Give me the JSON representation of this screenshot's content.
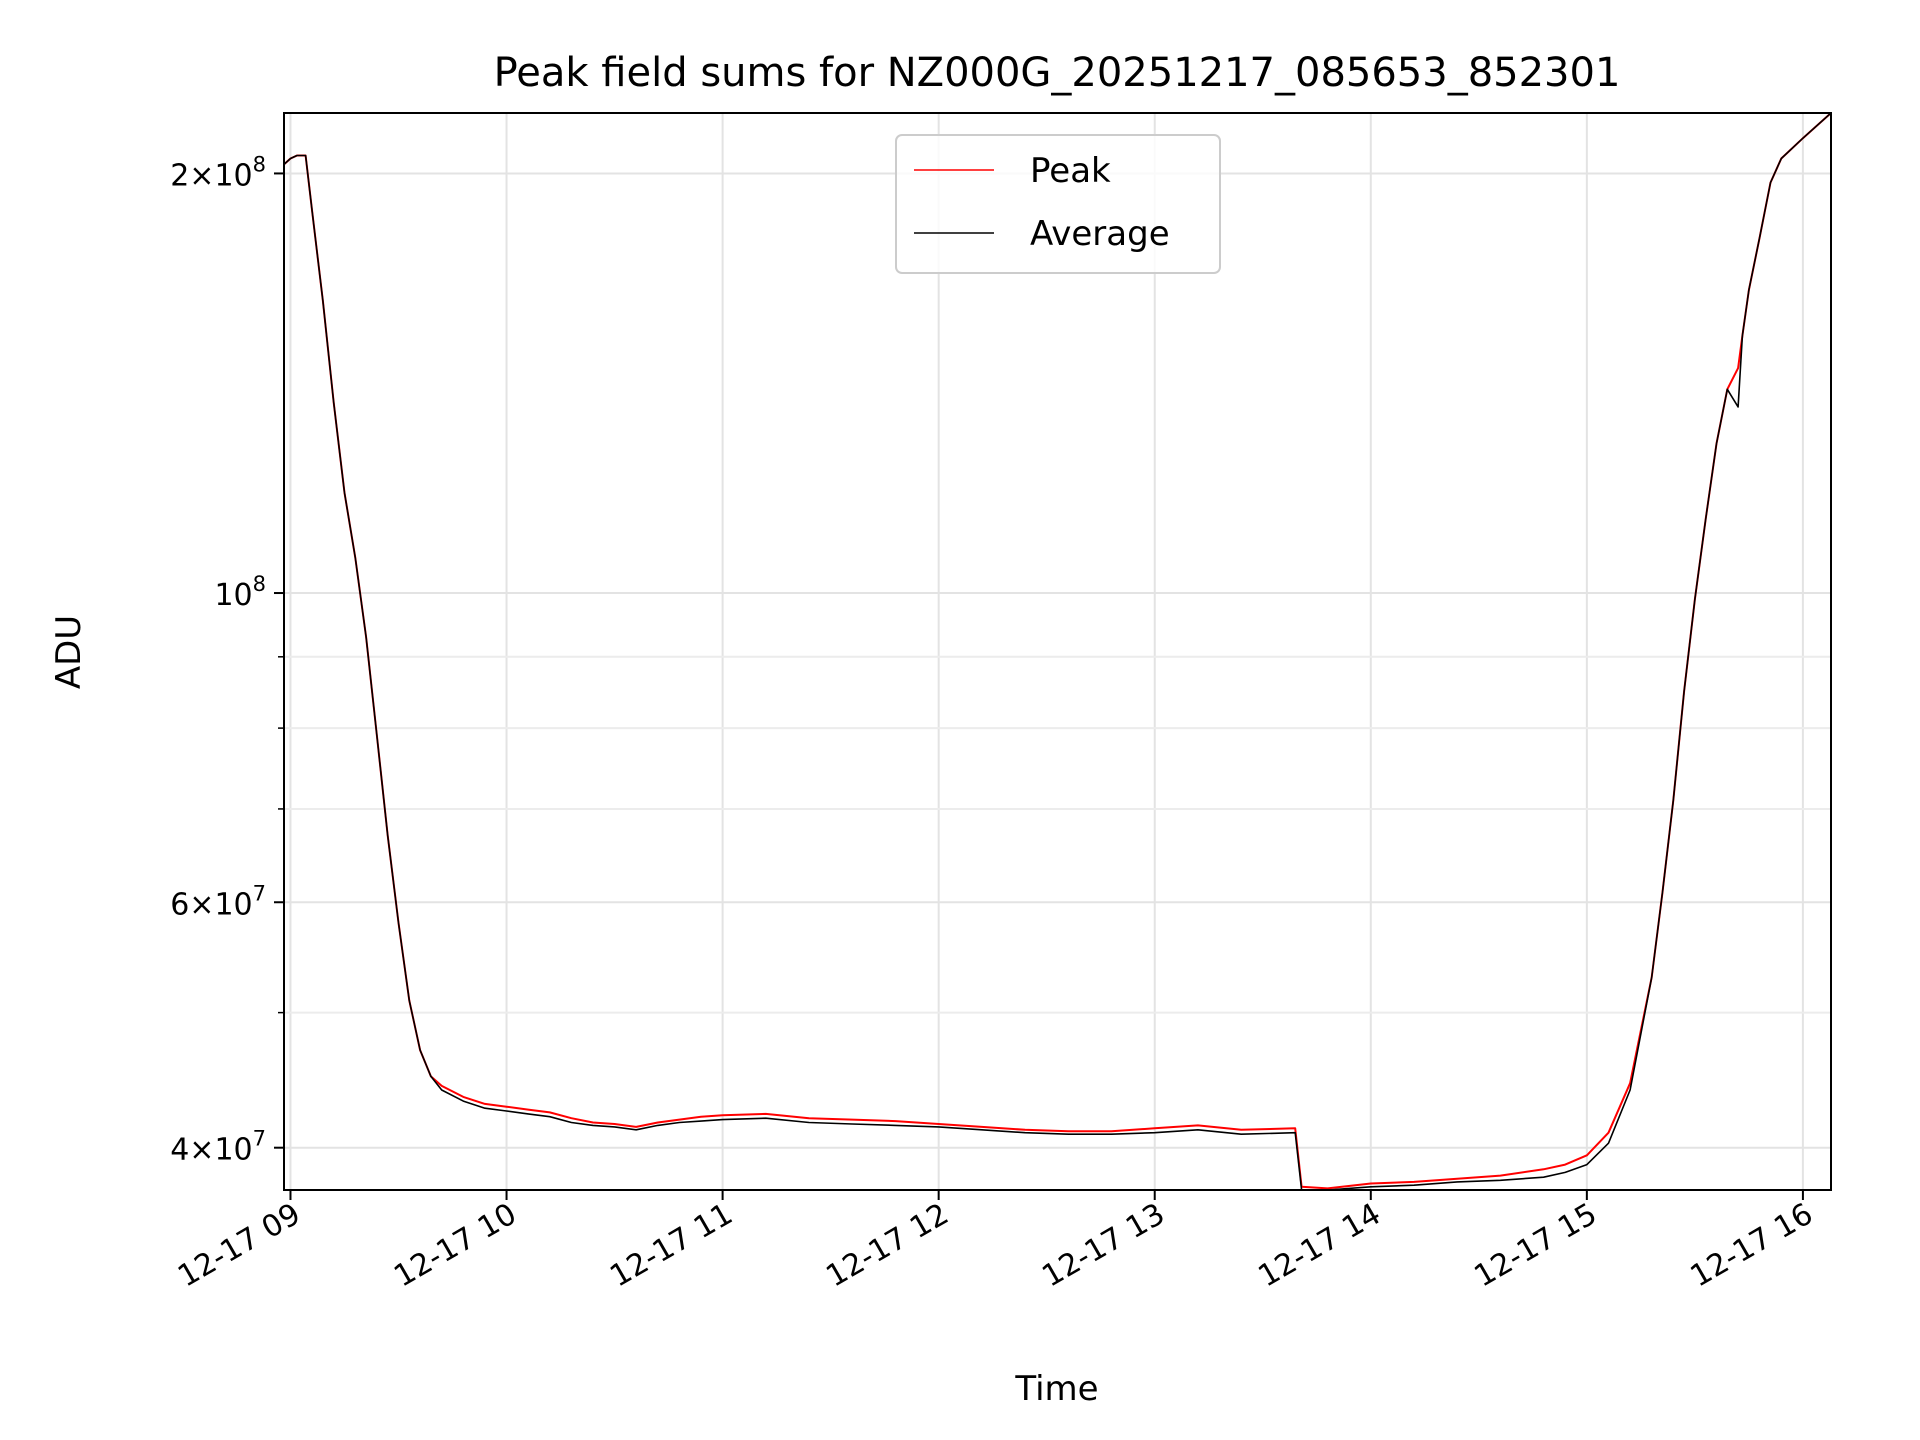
{
  "chart_data": {
    "type": "line",
    "title": "Peak field sums for NZ000G_20251217_085653_852301",
    "xlabel": "Time",
    "ylabel": "ADU",
    "yscale": "log",
    "xlim": [
      8.97,
      16.13
    ],
    "ylim": [
      37300000,
      221000000
    ],
    "grid": true,
    "legend_position": "top-center",
    "x_ticks": [
      {
        "value": 9,
        "label": "12-17 09"
      },
      {
        "value": 10,
        "label": "12-17 10"
      },
      {
        "value": 11,
        "label": "12-17 11"
      },
      {
        "value": 12,
        "label": "12-17 12"
      },
      {
        "value": 13,
        "label": "12-17 13"
      },
      {
        "value": 14,
        "label": "12-17 14"
      },
      {
        "value": 15,
        "label": "12-17 15"
      },
      {
        "value": 16,
        "label": "12-17 16"
      }
    ],
    "y_ticks": [
      {
        "value": 40000000,
        "mantissa": "4×10",
        "exp": "7"
      },
      {
        "value": 60000000,
        "mantissa": "6×10",
        "exp": "7"
      },
      {
        "value": 100000000,
        "mantissa": "10",
        "exp": "8"
      },
      {
        "value": 200000000,
        "mantissa": "2×10",
        "exp": "8"
      }
    ],
    "y_minor_ticks": [
      30000000,
      50000000,
      70000000,
      80000000,
      90000000
    ],
    "series": [
      {
        "name": "Peak",
        "color": "#ff0000",
        "x": [
          8.97,
          9.0,
          9.03,
          9.07,
          9.1,
          9.15,
          9.2,
          9.25,
          9.3,
          9.35,
          9.4,
          9.45,
          9.5,
          9.55,
          9.6,
          9.65,
          9.7,
          9.8,
          9.9,
          10.0,
          10.1,
          10.2,
          10.3,
          10.4,
          10.5,
          10.6,
          10.7,
          10.8,
          10.9,
          11.0,
          11.2,
          11.4,
          11.6,
          11.8,
          12.0,
          12.2,
          12.4,
          12.6,
          12.8,
          13.0,
          13.2,
          13.4,
          13.65,
          13.68,
          13.8,
          14.0,
          14.2,
          14.4,
          14.6,
          14.8,
          14.9,
          15.0,
          15.1,
          15.2,
          15.3,
          15.35,
          15.4,
          15.45,
          15.5,
          15.55,
          15.6,
          15.65,
          15.7,
          15.72,
          15.75,
          15.8,
          15.85,
          15.9,
          16.0,
          16.13
        ],
        "values": [
          203000000,
          205000000,
          206000000,
          206000000,
          188000000,
          162000000,
          137000000,
          118000000,
          106000000,
          93000000,
          79000000,
          67000000,
          58000000,
          51000000,
          47000000,
          45000000,
          44300000,
          43500000,
          43000000,
          42800000,
          42600000,
          42400000,
          42000000,
          41700000,
          41600000,
          41400000,
          41700000,
          41900000,
          42100000,
          42200000,
          42300000,
          42000000,
          41900000,
          41800000,
          41600000,
          41400000,
          41200000,
          41100000,
          41100000,
          41300000,
          41500000,
          41200000,
          41300000,
          37500000,
          37400000,
          37700000,
          37800000,
          38000000,
          38200000,
          38600000,
          38900000,
          39500000,
          41000000,
          44500000,
          53000000,
          61000000,
          71000000,
          85000000,
          99000000,
          113000000,
          128000000,
          140000000,
          145000000,
          153000000,
          165000000,
          180000000,
          197000000,
          205000000,
          212000000,
          221000000
        ]
      },
      {
        "name": "Average",
        "color": "#000000",
        "x": [
          8.97,
          9.0,
          9.03,
          9.07,
          9.1,
          9.15,
          9.2,
          9.25,
          9.3,
          9.35,
          9.4,
          9.45,
          9.5,
          9.55,
          9.6,
          9.65,
          9.7,
          9.8,
          9.9,
          10.0,
          10.1,
          10.2,
          10.3,
          10.4,
          10.5,
          10.6,
          10.7,
          10.8,
          10.9,
          11.0,
          11.2,
          11.4,
          11.6,
          11.8,
          12.0,
          12.2,
          12.4,
          12.6,
          12.8,
          13.0,
          13.2,
          13.4,
          13.65,
          13.68,
          13.8,
          14.0,
          14.2,
          14.4,
          14.6,
          14.8,
          14.9,
          15.0,
          15.1,
          15.2,
          15.3,
          15.35,
          15.4,
          15.45,
          15.5,
          15.55,
          15.6,
          15.65,
          15.7,
          15.72,
          15.75,
          15.8,
          15.85,
          15.9,
          16.0,
          16.13
        ],
        "values": [
          203000000,
          205000000,
          206000000,
          206000000,
          188000000,
          162000000,
          137000000,
          118000000,
          106000000,
          93000000,
          79000000,
          67000000,
          58000000,
          51000000,
          47000000,
          45000000,
          44000000,
          43200000,
          42700000,
          42500000,
          42300000,
          42100000,
          41700000,
          41500000,
          41400000,
          41200000,
          41500000,
          41700000,
          41800000,
          41900000,
          42000000,
          41700000,
          41600000,
          41500000,
          41400000,
          41200000,
          41000000,
          40900000,
          40900000,
          41000000,
          41200000,
          40900000,
          41000000,
          37300000,
          37300000,
          37500000,
          37600000,
          37800000,
          37900000,
          38100000,
          38400000,
          38900000,
          40300000,
          44000000,
          53000000,
          61000000,
          71000000,
          85000000,
          99000000,
          113000000,
          128000000,
          140000000,
          136000000,
          153000000,
          165000000,
          180000000,
          197000000,
          205000000,
          212000000,
          221000000
        ]
      }
    ]
  }
}
